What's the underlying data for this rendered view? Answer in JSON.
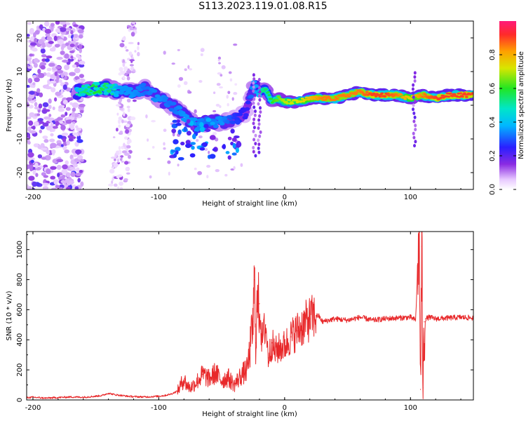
{
  "title": "S113.2023.119.01.08.R15",
  "colors": {
    "snr_line": "#e8282a",
    "axis": "#000000"
  },
  "chart_data": [
    {
      "type": "heatmap",
      "title": "S113.2023.119.01.08.R15",
      "xlabel": "Height of straight line (km)",
      "ylabel": "Frequency (Hz)",
      "xlim": [
        -205,
        150
      ],
      "ylim": [
        -25,
        25
      ],
      "x_ticks": [
        -200,
        -100,
        0,
        100
      ],
      "x_tick_labels": [
        "-200",
        "-100",
        "0",
        "100"
      ],
      "y_ticks": [
        -20,
        -10,
        0,
        10,
        20
      ],
      "y_tick_labels": [
        "-20",
        "-10",
        "0",
        "10",
        "20"
      ],
      "colorbar": {
        "label": "Normalized spectral amplitude",
        "range": [
          0,
          1
        ],
        "ticks": [
          0.0,
          0.2,
          0.4,
          0.6,
          0.8
        ],
        "tick_labels": [
          "0.0",
          "0.2",
          "0.4",
          "0.6",
          "0.8"
        ],
        "colormap": "rainbow"
      },
      "ridge": {
        "x": [
          -165,
          -150,
          -140,
          -130,
          -120,
          -110,
          -100,
          -90,
          -80,
          -70,
          -60,
          -50,
          -40,
          -30,
          -25,
          -20,
          -15,
          -10,
          -5,
          0,
          10,
          20,
          30,
          40,
          50,
          60,
          70,
          80,
          90,
          100,
          110,
          120,
          130,
          140,
          150
        ],
        "y": [
          4,
          5,
          5,
          4,
          4,
          5,
          2,
          0,
          -3,
          -6,
          -5,
          -5,
          -4,
          -2,
          6,
          4,
          5,
          1,
          2,
          1,
          1,
          2,
          2,
          2,
          3,
          4,
          3,
          3,
          3,
          2,
          3,
          2,
          3,
          3,
          3
        ],
        "amplitude": [
          0.5,
          0.6,
          0.55,
          0.45,
          0.45,
          0.4,
          0.45,
          0.4,
          0.45,
          0.45,
          0.4,
          0.45,
          0.35,
          0.3,
          0.45,
          0.5,
          0.55,
          0.6,
          0.65,
          0.7,
          0.72,
          0.78,
          0.85,
          0.85,
          0.85,
          0.85,
          0.9,
          0.9,
          0.85,
          0.75,
          0.85,
          0.9,
          0.9,
          0.9,
          0.9
        ]
      }
    },
    {
      "type": "line",
      "xlabel": "Height of straight line (km)",
      "ylabel": "SNR (10 * v/v)",
      "xlim": [
        -205,
        150
      ],
      "ylim": [
        0,
        1120
      ],
      "x_ticks": [
        -200,
        -100,
        0,
        100
      ],
      "x_tick_labels": [
        "-200",
        "-100",
        "0",
        "100"
      ],
      "y_ticks": [
        0,
        200,
        400,
        600,
        800,
        1000
      ],
      "y_tick_labels": [
        "0",
        "200",
        "400",
        "600",
        "800",
        "1000"
      ],
      "series": [
        {
          "color": "#e8282a",
          "x": [
            -205,
            -200,
            -190,
            -180,
            -170,
            -160,
            -150,
            -145,
            -140,
            -135,
            -130,
            -125,
            -120,
            -110,
            -100,
            -95,
            -90,
            -85,
            -80,
            -78,
            -75,
            -70,
            -65,
            -60,
            -55,
            -50,
            -45,
            -40,
            -35,
            -30,
            -28,
            -25,
            -24,
            -23,
            -22,
            -20,
            -18,
            -15,
            -13,
            -10,
            -8,
            -5,
            0,
            5,
            10,
            15,
            20,
            25,
            27,
            30,
            40,
            50,
            60,
            70,
            80,
            90,
            100,
            104,
            106,
            107,
            108,
            109,
            110,
            111,
            112,
            115,
            120,
            130,
            140,
            150
          ],
          "y": [
            15,
            18,
            12,
            16,
            20,
            18,
            25,
            30,
            45,
            35,
            30,
            25,
            22,
            20,
            25,
            30,
            40,
            60,
            140,
            100,
            80,
            120,
            170,
            140,
            180,
            130,
            150,
            100,
            160,
            200,
            300,
            520,
            800,
            380,
            600,
            640,
            400,
            500,
            280,
            380,
            320,
            340,
            360,
            420,
            460,
            500,
            540,
            560,
            560,
            520,
            540,
            530,
            550,
            530,
            540,
            545,
            550,
            530,
            900,
            1110,
            70,
            1020,
            80,
            520,
            540,
            550,
            540,
            545,
            550,
            545
          ]
        }
      ]
    }
  ]
}
